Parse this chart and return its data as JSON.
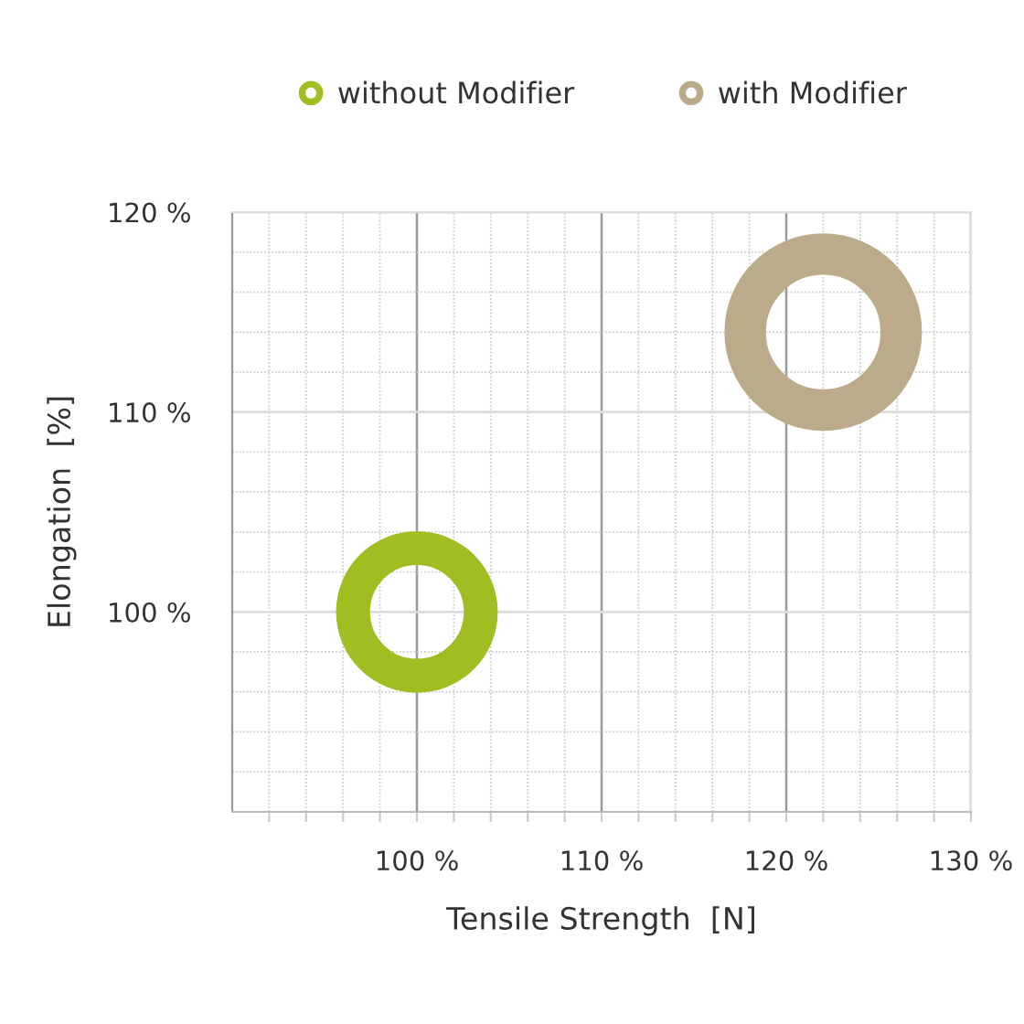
{
  "chart_data": {
    "type": "bubble",
    "xlabel": "Tensile Strength  [N]",
    "ylabel": "Elongation  [%]",
    "series": [
      {
        "name": "without Modifier",
        "color": "#a0bd22",
        "x": [
          100
        ],
        "values": [
          100
        ],
        "sizes": [
          0.67
        ]
      },
      {
        "name": "with Modifier",
        "color": "#bcab8b",
        "x": [
          122
        ],
        "values": [
          114
        ],
        "sizes": [
          1
        ]
      }
    ],
    "xlim": [
      90,
      130
    ],
    "ylim": [
      90,
      120
    ],
    "xticks": [
      {
        "value": 92,
        "label": null
      },
      {
        "value": 94,
        "label": null
      },
      {
        "value": 96,
        "label": null
      },
      {
        "value": 98,
        "label": null
      },
      {
        "value": 100,
        "label": "100 %"
      },
      {
        "value": 102,
        "label": null
      },
      {
        "value": 104,
        "label": null
      },
      {
        "value": 106,
        "label": null
      },
      {
        "value": 108,
        "label": null
      },
      {
        "value": 110,
        "label": "110 %"
      },
      {
        "value": 112,
        "label": null
      },
      {
        "value": 114,
        "label": null
      },
      {
        "value": 116,
        "label": null
      },
      {
        "value": 118,
        "label": null
      },
      {
        "value": 120,
        "label": "120 %"
      },
      {
        "value": 122,
        "label": null
      },
      {
        "value": 124,
        "label": null
      },
      {
        "value": 126,
        "label": null
      },
      {
        "value": 128,
        "label": null
      },
      {
        "value": 130,
        "label": "130 %"
      }
    ],
    "yticks": [
      {
        "value": 92,
        "label": null
      },
      {
        "value": 94,
        "label": null
      },
      {
        "value": 96,
        "label": null
      },
      {
        "value": 98,
        "label": null
      },
      {
        "value": 100,
        "label": "100 %"
      },
      {
        "value": 102,
        "label": null
      },
      {
        "value": 104,
        "label": null
      },
      {
        "value": 106,
        "label": null
      },
      {
        "value": 108,
        "label": null
      },
      {
        "value": 110,
        "label": "110 %"
      },
      {
        "value": 112,
        "label": null
      },
      {
        "value": 114,
        "label": null
      },
      {
        "value": 116,
        "label": null
      },
      {
        "value": 118,
        "label": null
      },
      {
        "value": 120,
        "label": "120 %"
      }
    ],
    "grid": true,
    "legend": "top"
  }
}
